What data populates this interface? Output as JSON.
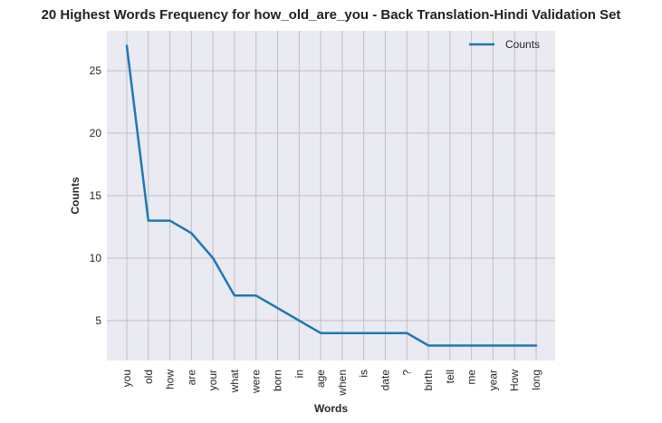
{
  "chart_data": {
    "type": "line",
    "title": "20 Highest Words Frequency for how_old_are_you - Back Translation-Hindi Validation Set",
    "xlabel": "Words",
    "ylabel": "Counts",
    "categories": [
      "you",
      "old",
      "how",
      "are",
      "your",
      "what",
      "were",
      "born",
      "in",
      "age",
      "when",
      "is",
      "date",
      "?",
      "birth",
      "tell",
      "me",
      "year",
      "How",
      "long"
    ],
    "series": [
      {
        "name": "Counts",
        "color": "#1f77b4",
        "values": [
          27,
          13,
          13,
          12,
          10,
          7,
          7,
          6,
          5,
          4,
          4,
          4,
          4,
          4,
          3,
          3,
          3,
          3,
          3,
          3
        ]
      }
    ],
    "ylim": [
      1.8,
      28.2
    ],
    "yticks": [
      5,
      10,
      15,
      20,
      25
    ],
    "grid": true,
    "legend": "top-right",
    "background": "#eaeaf2",
    "grid_color": "#c0c0c0"
  }
}
